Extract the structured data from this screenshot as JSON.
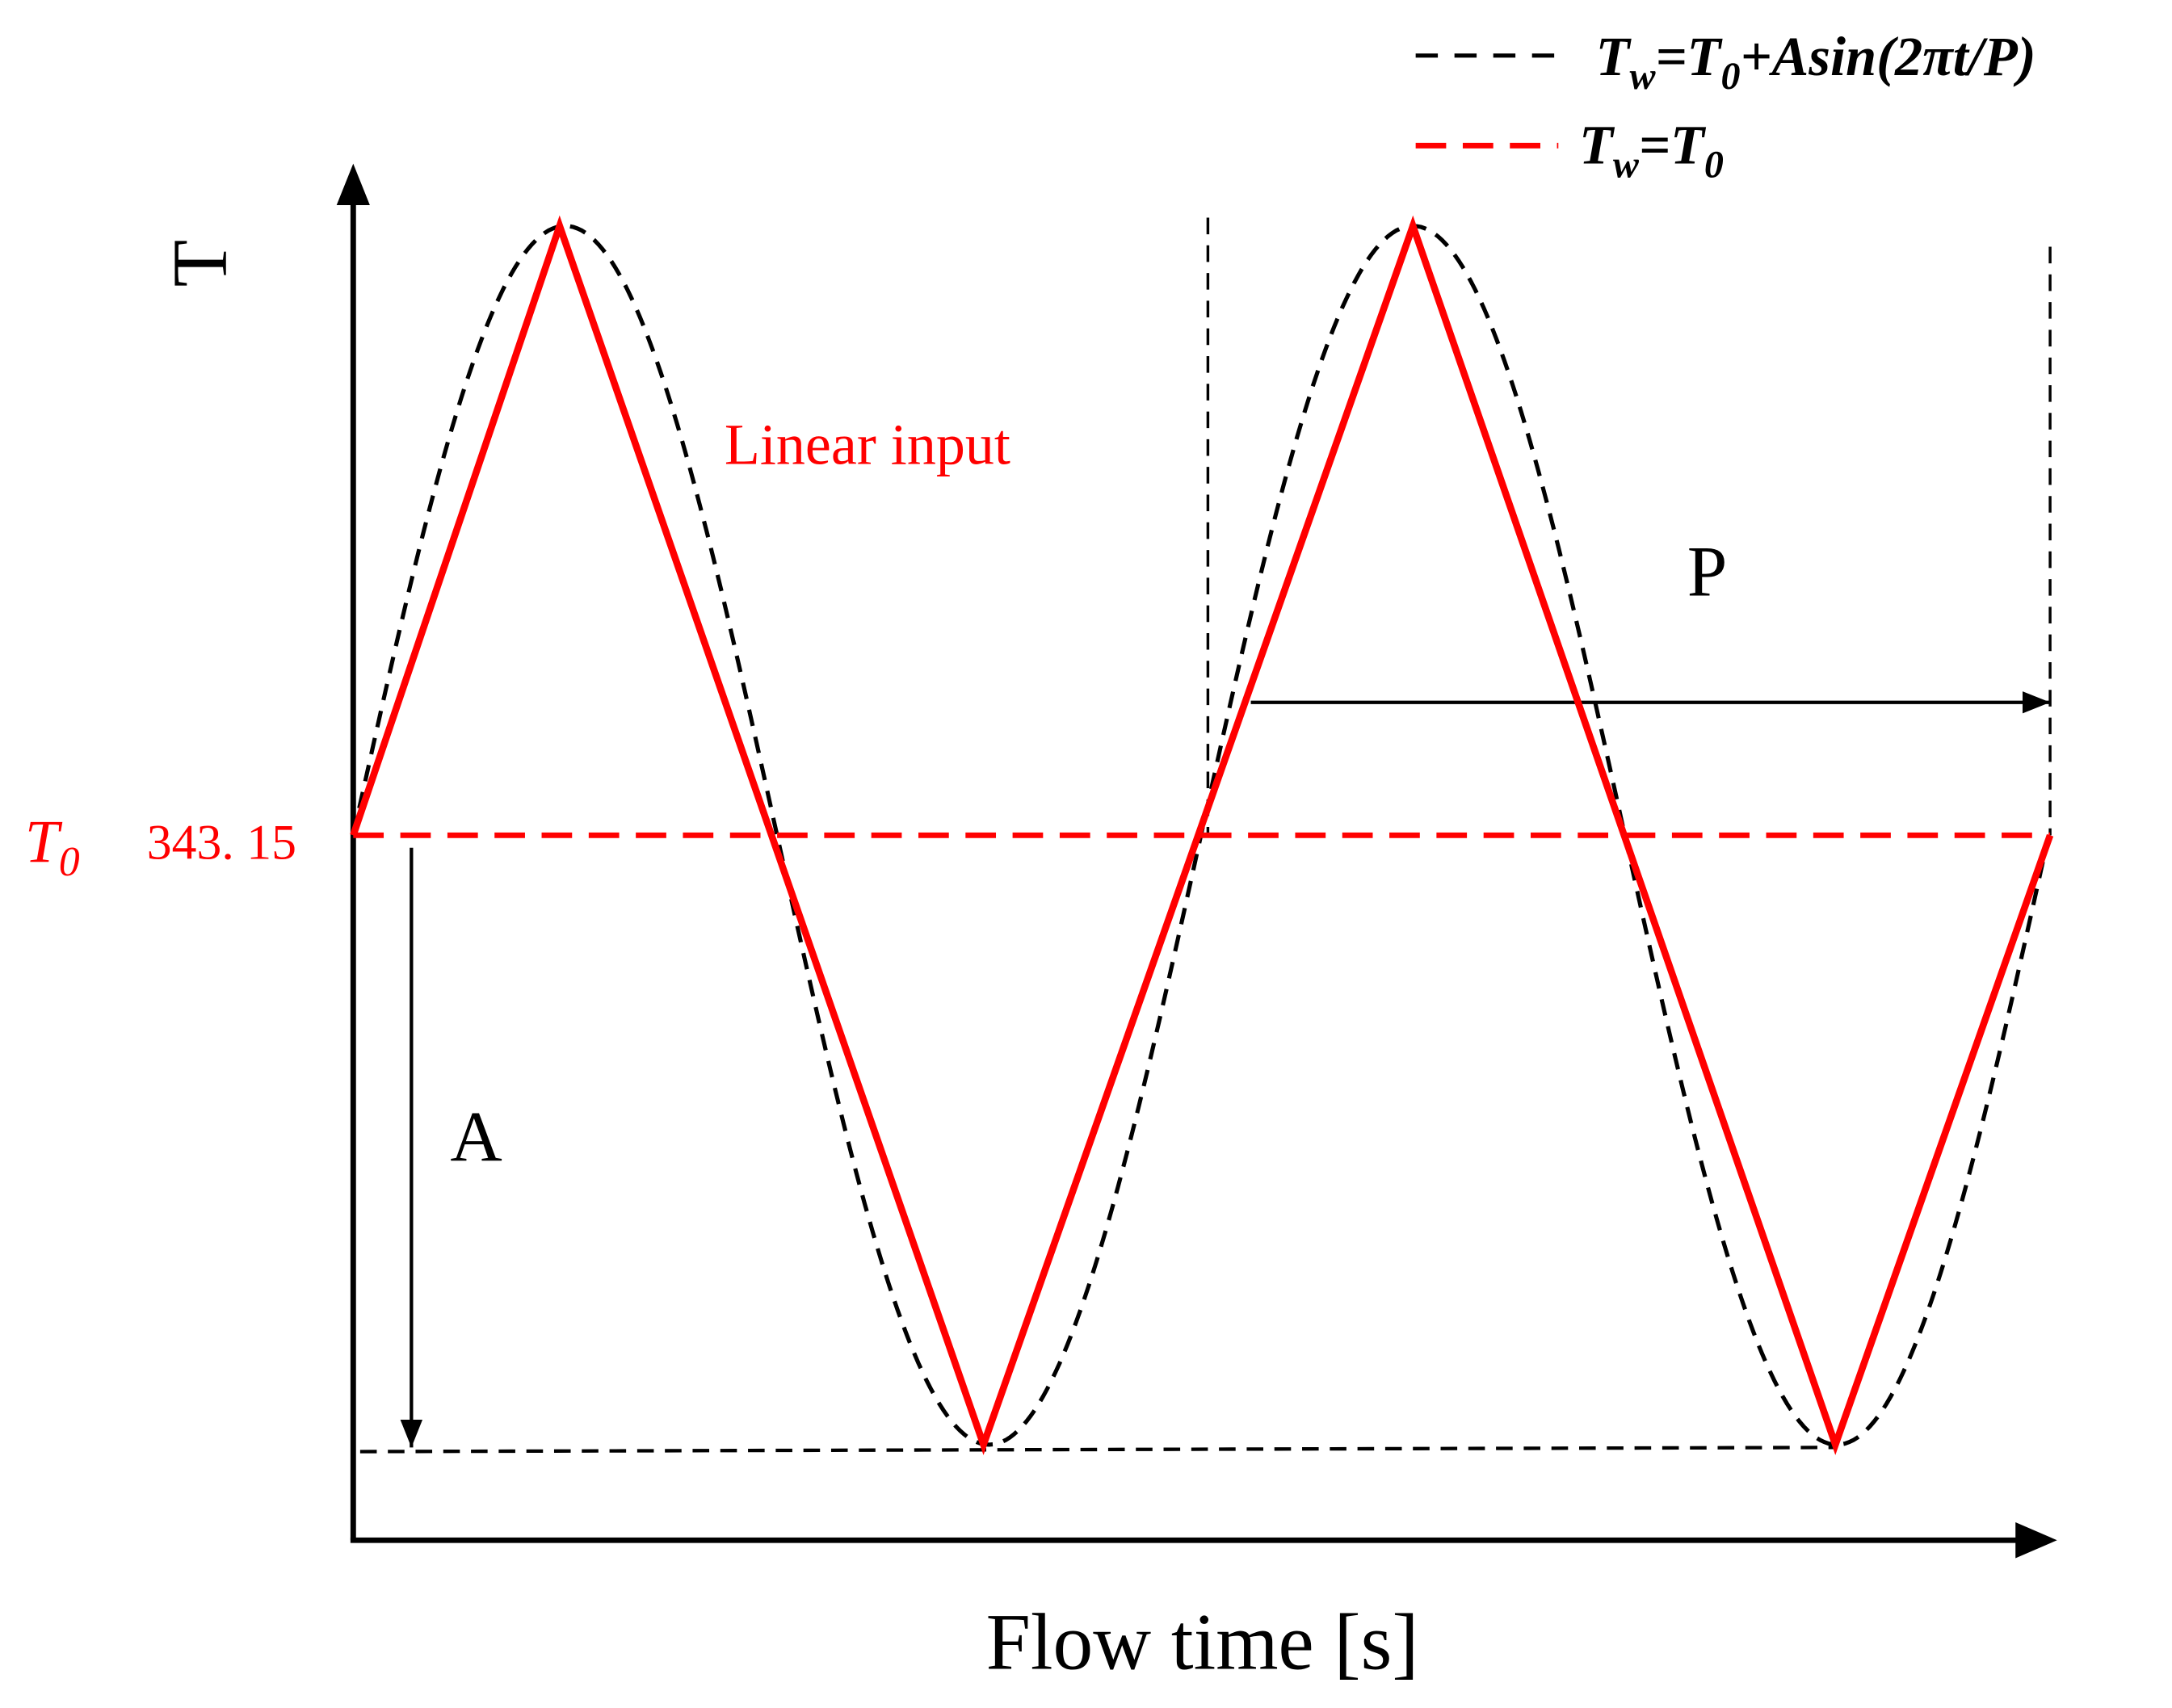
{
  "axis": {
    "y_label": "T",
    "x_label": "Flow time [s]"
  },
  "t0": {
    "symbol": "T",
    "subscript": "0",
    "value": "343. 15"
  },
  "annotations": {
    "linear": "Linear input",
    "period": "P",
    "amplitude": "A"
  },
  "legend": [
    {
      "parts": [
        {
          "text": "T"
        },
        {
          "sub": "w"
        },
        {
          "text": "=T"
        },
        {
          "sub": "0"
        },
        {
          "text": "+Asin(2πt/P)"
        }
      ]
    },
    {
      "parts": [
        {
          "text": "T"
        },
        {
          "sub": "w"
        },
        {
          "text": "=T"
        },
        {
          "sub": "0"
        }
      ]
    }
  ]
}
